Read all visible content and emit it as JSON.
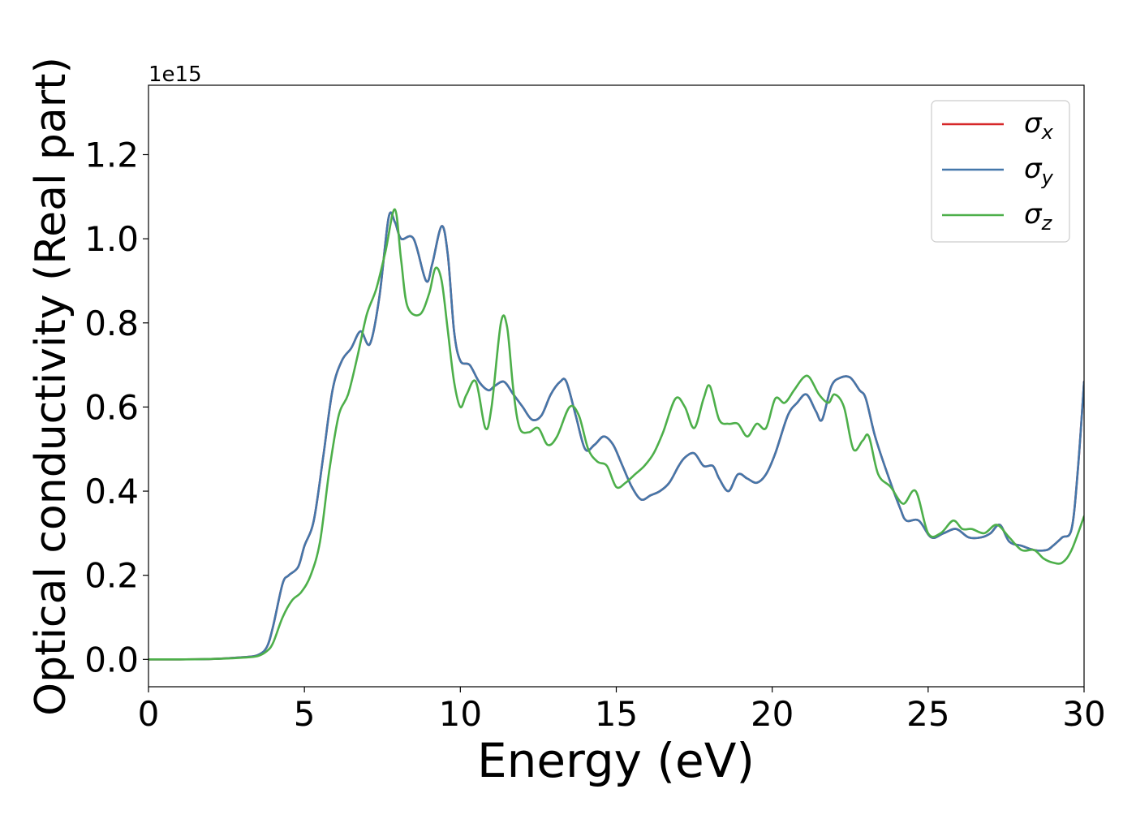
{
  "chart_data": {
    "type": "line",
    "title": "",
    "xlabel": "Energy (eV)",
    "ylabel": "Optical conductivity (Real part)",
    "offset_label": "1e15",
    "xlim": [
      0,
      30
    ],
    "ylim": [
      -0.065,
      1.365
    ],
    "xticks": [
      0,
      5,
      10,
      15,
      20,
      25,
      30
    ],
    "xtick_labels": [
      "0",
      "5",
      "10",
      "15",
      "20",
      "25",
      "30"
    ],
    "yticks": [
      0.0,
      0.2,
      0.4,
      0.6,
      0.8,
      1.0,
      1.2
    ],
    "ytick_labels": [
      "0.0",
      "0.2",
      "0.4",
      "0.6",
      "0.8",
      "1.0",
      "1.2"
    ],
    "grid": false,
    "legend_position": "top-right",
    "series": [
      {
        "name": "σx",
        "legend_base": "σ",
        "legend_sub": "x",
        "color": "#d62728",
        "x": [
          0,
          1,
          2,
          3,
          3.5,
          3.8,
          4.0,
          4.3,
          4.5,
          4.8,
          5.0,
          5.3,
          5.6,
          5.9,
          6.2,
          6.5,
          6.8,
          7.1,
          7.4,
          7.7,
          7.9,
          8.1,
          8.5,
          8.9,
          9.1,
          9.4,
          9.6,
          9.8,
          10.0,
          10.3,
          10.6,
          10.9,
          11.1,
          11.4,
          11.7,
          12.0,
          12.3,
          12.6,
          12.9,
          13.2,
          13.4,
          13.7,
          14.0,
          14.3,
          14.6,
          14.9,
          15.2,
          15.5,
          15.8,
          16.1,
          16.4,
          16.7,
          17.0,
          17.2,
          17.5,
          17.8,
          18.1,
          18.3,
          18.6,
          18.9,
          19.2,
          19.5,
          19.8,
          20.1,
          20.5,
          20.8,
          21.1,
          21.4,
          21.6,
          21.9,
          22.2,
          22.5,
          22.8,
          23.0,
          23.3,
          23.7,
          24.1,
          24.3,
          24.7,
          25.1,
          25.5,
          25.9,
          26.3,
          26.7,
          27.0,
          27.3,
          27.6,
          28.0,
          28.4,
          28.8,
          29.0,
          29.3,
          29.6,
          29.8,
          30.0
        ],
        "values": [
          0.0,
          0.0,
          0.001,
          0.005,
          0.01,
          0.03,
          0.08,
          0.18,
          0.2,
          0.22,
          0.27,
          0.33,
          0.48,
          0.64,
          0.71,
          0.74,
          0.78,
          0.75,
          0.86,
          1.05,
          1.04,
          1.0,
          1.0,
          0.9,
          0.94,
          1.03,
          0.96,
          0.78,
          0.71,
          0.7,
          0.66,
          0.64,
          0.65,
          0.66,
          0.63,
          0.6,
          0.57,
          0.58,
          0.63,
          0.66,
          0.66,
          0.58,
          0.5,
          0.51,
          0.53,
          0.51,
          0.46,
          0.41,
          0.38,
          0.39,
          0.4,
          0.42,
          0.46,
          0.48,
          0.49,
          0.46,
          0.46,
          0.43,
          0.4,
          0.44,
          0.43,
          0.42,
          0.44,
          0.49,
          0.58,
          0.61,
          0.63,
          0.59,
          0.57,
          0.65,
          0.67,
          0.67,
          0.64,
          0.62,
          0.53,
          0.44,
          0.36,
          0.33,
          0.33,
          0.29,
          0.3,
          0.31,
          0.29,
          0.29,
          0.3,
          0.32,
          0.28,
          0.27,
          0.26,
          0.26,
          0.27,
          0.29,
          0.31,
          0.45,
          0.66
        ]
      },
      {
        "name": "σy",
        "legend_base": "σ",
        "legend_sub": "y",
        "color": "#4477aa",
        "x": [
          0,
          1,
          2,
          3,
          3.5,
          3.8,
          4.0,
          4.3,
          4.5,
          4.8,
          5.0,
          5.3,
          5.6,
          5.9,
          6.2,
          6.5,
          6.8,
          7.1,
          7.4,
          7.7,
          7.9,
          8.1,
          8.5,
          8.9,
          9.1,
          9.4,
          9.6,
          9.8,
          10.0,
          10.3,
          10.6,
          10.9,
          11.1,
          11.4,
          11.7,
          12.0,
          12.3,
          12.6,
          12.9,
          13.2,
          13.4,
          13.7,
          14.0,
          14.3,
          14.6,
          14.9,
          15.2,
          15.5,
          15.8,
          16.1,
          16.4,
          16.7,
          17.0,
          17.2,
          17.5,
          17.8,
          18.1,
          18.3,
          18.6,
          18.9,
          19.2,
          19.5,
          19.8,
          20.1,
          20.5,
          20.8,
          21.1,
          21.4,
          21.6,
          21.9,
          22.2,
          22.5,
          22.8,
          23.0,
          23.3,
          23.7,
          24.1,
          24.3,
          24.7,
          25.1,
          25.5,
          25.9,
          26.3,
          26.7,
          27.0,
          27.3,
          27.6,
          28.0,
          28.4,
          28.8,
          29.0,
          29.3,
          29.6,
          29.8,
          30.0
        ],
        "values": [
          0.0,
          0.0,
          0.001,
          0.005,
          0.01,
          0.03,
          0.08,
          0.18,
          0.2,
          0.22,
          0.27,
          0.33,
          0.48,
          0.64,
          0.71,
          0.74,
          0.78,
          0.75,
          0.86,
          1.05,
          1.04,
          1.0,
          1.0,
          0.9,
          0.94,
          1.03,
          0.96,
          0.78,
          0.71,
          0.7,
          0.66,
          0.64,
          0.65,
          0.66,
          0.63,
          0.6,
          0.57,
          0.58,
          0.63,
          0.66,
          0.66,
          0.58,
          0.5,
          0.51,
          0.53,
          0.51,
          0.46,
          0.41,
          0.38,
          0.39,
          0.4,
          0.42,
          0.46,
          0.48,
          0.49,
          0.46,
          0.46,
          0.43,
          0.4,
          0.44,
          0.43,
          0.42,
          0.44,
          0.49,
          0.58,
          0.61,
          0.63,
          0.59,
          0.57,
          0.65,
          0.67,
          0.67,
          0.64,
          0.62,
          0.53,
          0.44,
          0.36,
          0.33,
          0.33,
          0.29,
          0.3,
          0.31,
          0.29,
          0.29,
          0.3,
          0.32,
          0.28,
          0.27,
          0.26,
          0.26,
          0.27,
          0.29,
          0.31,
          0.45,
          0.66
        ]
      },
      {
        "name": "σz",
        "legend_base": "σ",
        "legend_sub": "z",
        "color": "#4daf4a",
        "x": [
          0,
          1,
          2,
          3,
          3.5,
          3.8,
          4.0,
          4.3,
          4.6,
          4.9,
          5.2,
          5.5,
          5.8,
          6.1,
          6.4,
          6.7,
          7.0,
          7.3,
          7.6,
          7.9,
          8.1,
          8.3,
          8.7,
          9.0,
          9.2,
          9.4,
          9.6,
          9.8,
          10.0,
          10.2,
          10.5,
          10.8,
          11.0,
          11.3,
          11.5,
          11.7,
          11.9,
          12.2,
          12.5,
          12.8,
          13.1,
          13.5,
          13.8,
          14.1,
          14.4,
          14.7,
          15.0,
          15.3,
          15.6,
          15.9,
          16.2,
          16.5,
          16.9,
          17.2,
          17.5,
          17.8,
          18.0,
          18.3,
          18.6,
          18.9,
          19.2,
          19.5,
          19.8,
          20.1,
          20.4,
          20.7,
          21.0,
          21.2,
          21.5,
          21.8,
          22.0,
          22.3,
          22.6,
          22.9,
          23.1,
          23.4,
          23.8,
          24.2,
          24.6,
          25.0,
          25.4,
          25.8,
          26.1,
          26.4,
          26.8,
          27.2,
          27.6,
          28.0,
          28.4,
          28.7,
          29.0,
          29.3,
          29.6,
          30.0
        ],
        "values": [
          0.0,
          0.0,
          0.001,
          0.004,
          0.008,
          0.02,
          0.04,
          0.1,
          0.14,
          0.16,
          0.2,
          0.28,
          0.45,
          0.58,
          0.63,
          0.72,
          0.82,
          0.88,
          0.97,
          1.07,
          0.95,
          0.84,
          0.82,
          0.87,
          0.93,
          0.9,
          0.78,
          0.66,
          0.6,
          0.63,
          0.66,
          0.55,
          0.6,
          0.8,
          0.79,
          0.64,
          0.55,
          0.54,
          0.55,
          0.51,
          0.53,
          0.6,
          0.58,
          0.5,
          0.47,
          0.46,
          0.41,
          0.42,
          0.44,
          0.46,
          0.49,
          0.54,
          0.62,
          0.6,
          0.55,
          0.62,
          0.65,
          0.57,
          0.56,
          0.56,
          0.53,
          0.56,
          0.55,
          0.62,
          0.61,
          0.64,
          0.67,
          0.67,
          0.63,
          0.61,
          0.63,
          0.6,
          0.5,
          0.52,
          0.53,
          0.44,
          0.41,
          0.37,
          0.4,
          0.3,
          0.3,
          0.33,
          0.31,
          0.31,
          0.3,
          0.32,
          0.29,
          0.26,
          0.26,
          0.24,
          0.23,
          0.23,
          0.26,
          0.34
        ]
      }
    ]
  }
}
